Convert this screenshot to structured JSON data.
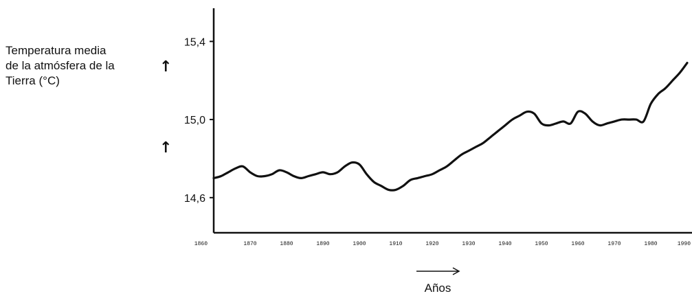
{
  "chart_data": {
    "type": "line",
    "title": "",
    "ylabel_lines": [
      "Temperatura media",
      "de la atmósfera de la",
      "Tierra (°C)"
    ],
    "xlabel": "Años",
    "y_tick_labels": [
      "15,4",
      "15,0",
      "14,6"
    ],
    "y_ticks": [
      15.4,
      15.0,
      14.6
    ],
    "ylim": [
      14.42,
      15.57
    ],
    "x_tick_labels": [
      "1860",
      "1870",
      "1880",
      "1890",
      "1900",
      "1910",
      "1920",
      "1930",
      "1940",
      "1950",
      "1960",
      "1970",
      "1980",
      "1990"
    ],
    "xlim": [
      1860,
      1990
    ],
    "grid": false,
    "series": [
      {
        "x": [
          1860,
          1862,
          1864,
          1866,
          1868,
          1870,
          1872,
          1874,
          1876,
          1878,
          1880,
          1882,
          1884,
          1886,
          1888,
          1890,
          1892,
          1894,
          1896,
          1898,
          1900,
          1902,
          1904,
          1906,
          1908,
          1910,
          1912,
          1914,
          1916,
          1918,
          1920,
          1922,
          1924,
          1926,
          1928,
          1930,
          1932,
          1934,
          1936,
          1938,
          1940,
          1942,
          1944,
          1946,
          1948,
          1950,
          1952,
          1954,
          1956,
          1958,
          1960,
          1962,
          1964,
          1966,
          1968,
          1970,
          1972,
          1974,
          1976,
          1978,
          1980,
          1982,
          1984,
          1986,
          1988,
          1990
        ],
        "y": [
          14.7,
          14.71,
          14.73,
          14.75,
          14.76,
          14.73,
          14.71,
          14.71,
          14.72,
          14.74,
          14.73,
          14.71,
          14.7,
          14.71,
          14.72,
          14.73,
          14.72,
          14.73,
          14.76,
          14.78,
          14.77,
          14.72,
          14.68,
          14.66,
          14.64,
          14.64,
          14.66,
          14.69,
          14.7,
          14.71,
          14.72,
          14.74,
          14.76,
          14.79,
          14.82,
          14.84,
          14.86,
          14.88,
          14.91,
          14.94,
          14.97,
          15.0,
          15.02,
          15.04,
          15.03,
          14.98,
          14.97,
          14.98,
          14.99,
          14.98,
          15.04,
          15.03,
          14.99,
          14.97,
          14.98,
          14.99,
          15.0,
          15.0,
          15.0,
          14.99,
          15.08,
          15.13,
          15.16,
          15.2,
          15.24,
          15.29
        ]
      }
    ]
  }
}
